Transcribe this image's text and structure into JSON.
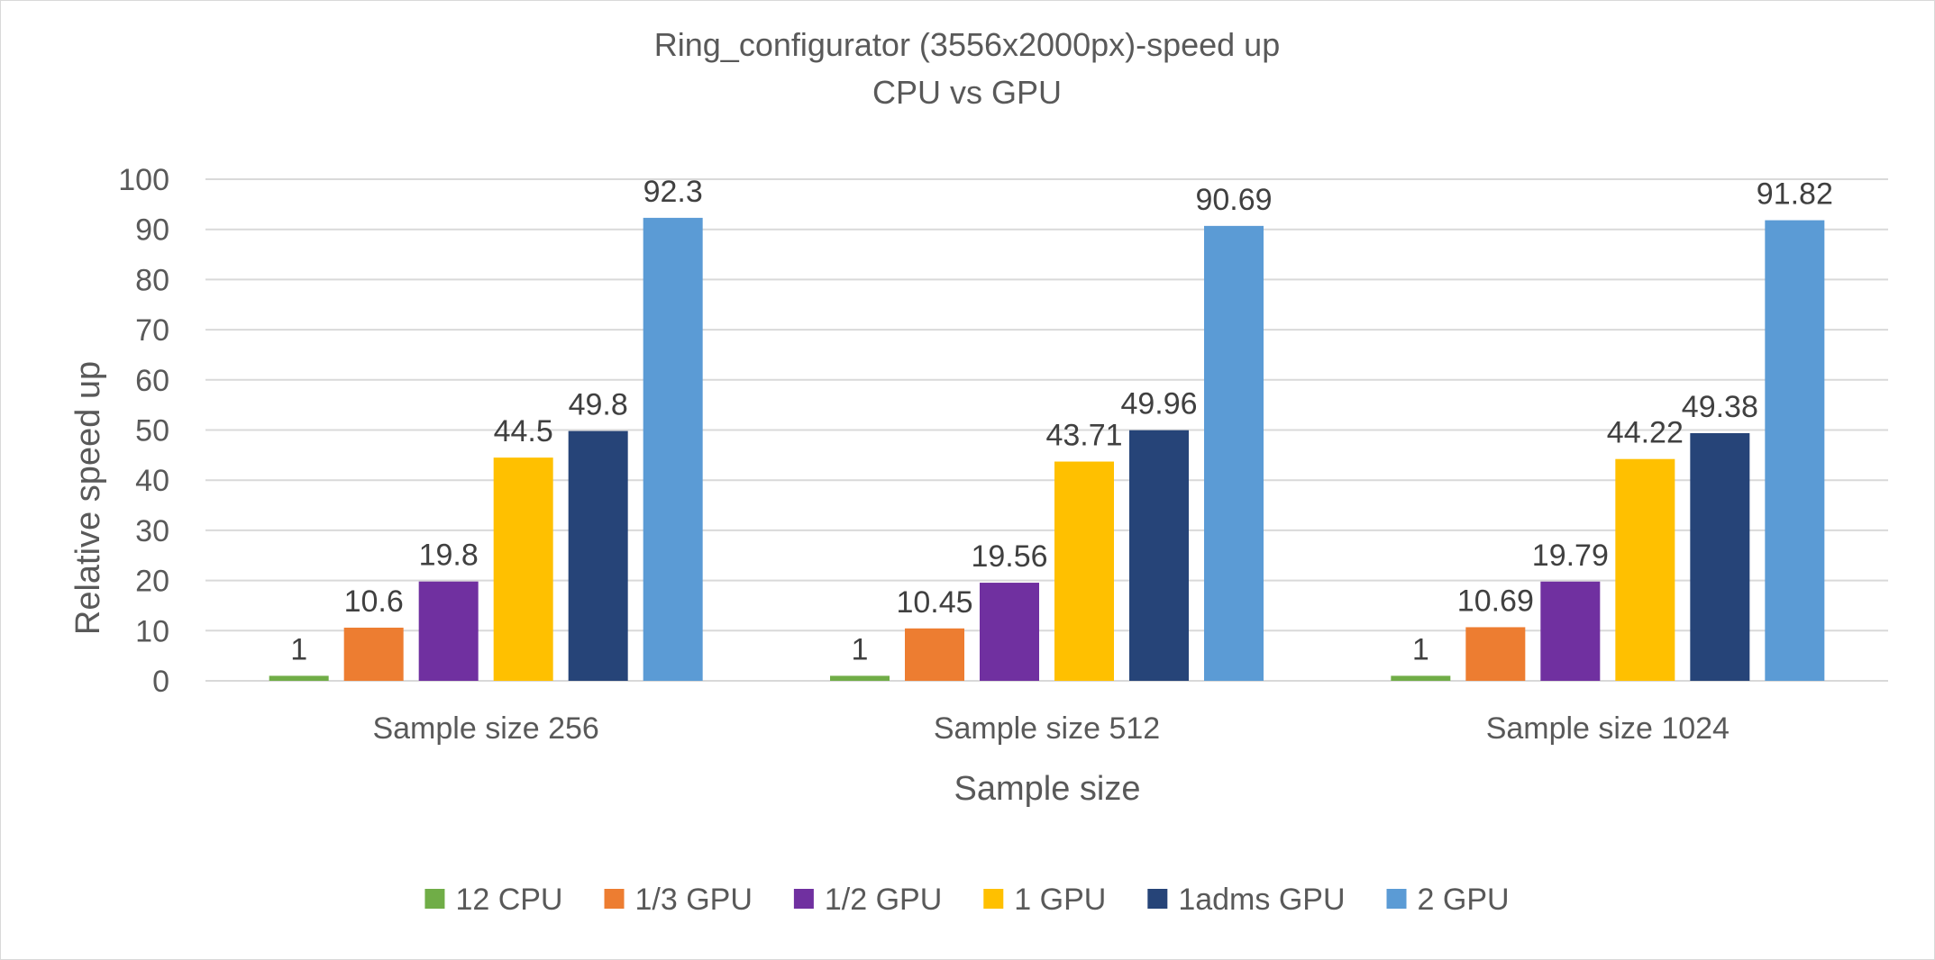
{
  "chart_data": {
    "type": "bar",
    "title": "Ring_configurator (3556x2000px)-speed up",
    "subtitle": "CPU vs GPU",
    "xlabel": "Sample size",
    "ylabel": "Relative speed up",
    "ylim": [
      0,
      100
    ],
    "ytick_step": 10,
    "grid": true,
    "legend_position": "bottom",
    "categories": [
      "Sample size 256",
      "Sample size 512",
      "Sample size 1024"
    ],
    "series": [
      {
        "name": "12 CPU",
        "color": "#70ad47",
        "values": [
          1,
          1,
          1
        ],
        "labels": [
          "1",
          "1",
          "1"
        ]
      },
      {
        "name": "1/3 GPU",
        "color": "#ed7d31",
        "values": [
          10.6,
          10.45,
          10.69
        ],
        "labels": [
          "10.6",
          "10.45",
          "10.69"
        ]
      },
      {
        "name": "1/2 GPU",
        "color": "#7030a0",
        "values": [
          19.8,
          19.56,
          19.79
        ],
        "labels": [
          "19.8",
          "19.56",
          "19.79"
        ]
      },
      {
        "name": "1 GPU",
        "color": "#ffc000",
        "values": [
          44.5,
          43.71,
          44.22
        ],
        "labels": [
          "44.5",
          "43.71",
          "44.22"
        ]
      },
      {
        "name": "1adms GPU",
        "color": "#264478",
        "values": [
          49.8,
          49.96,
          49.38
        ],
        "labels": [
          "49.8",
          "49.96",
          "49.38"
        ]
      },
      {
        "name": "2 GPU",
        "color": "#5b9bd5",
        "values": [
          92.3,
          90.69,
          91.82
        ],
        "labels": [
          "92.3",
          "90.69",
          "91.82"
        ]
      }
    ]
  }
}
